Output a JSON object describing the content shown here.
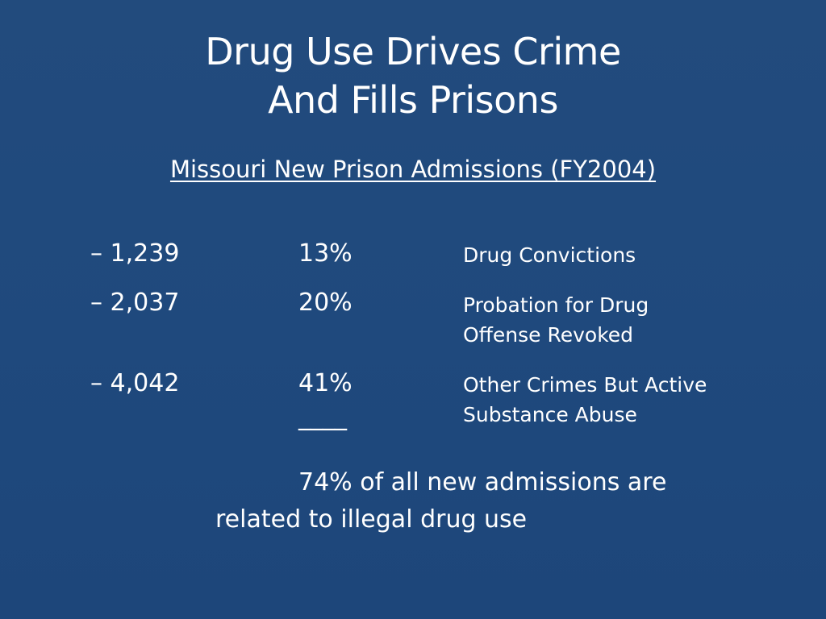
{
  "title": {
    "line1": "Drug Use Drives Crime",
    "line2": "And Fills Prisons"
  },
  "subtitle": "Missouri New Prison Admissions (FY2004)",
  "rows": [
    {
      "count": "– 1,239",
      "percent": "13%",
      "description": [
        "Drug Convictions"
      ]
    },
    {
      "count": "– 2,037",
      "percent": "20%",
      "description": [
        "Probation for Drug",
        "Offense Revoked"
      ]
    },
    {
      "count": "– 4,042",
      "percent": "41%",
      "description": [
        "Other Crimes But Active",
        "Substance Abuse"
      ]
    }
  ],
  "sum_line": "____",
  "summary": {
    "line1": "74% of all new admissions are",
    "line2": "related to illegal drug use"
  }
}
